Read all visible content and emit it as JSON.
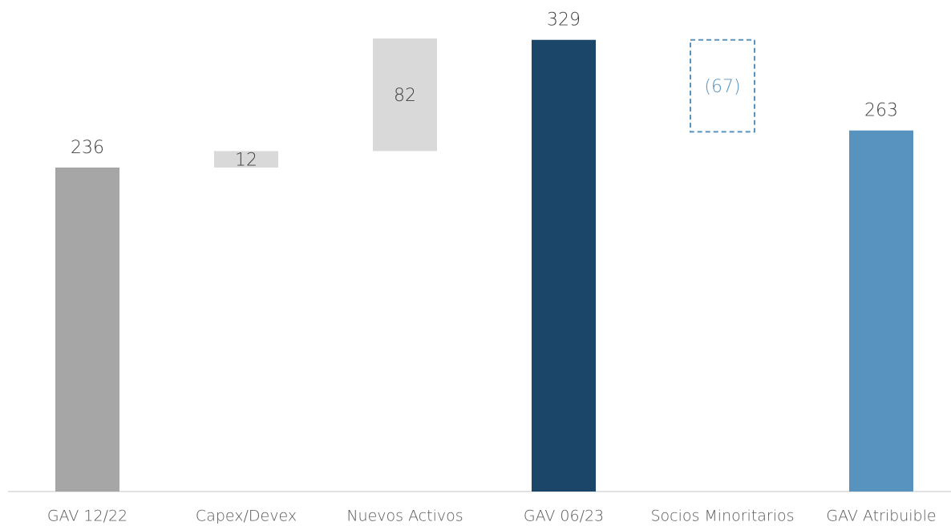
{
  "chart_data": {
    "type": "waterfall",
    "categories": [
      "GAV 12/22",
      "Capex/Devex",
      "Nuevos Activos",
      "GAV 06/23",
      "Socios Minoritarios",
      "GAV Atribuible"
    ],
    "values": [
      236,
      12,
      82,
      329,
      -67,
      263
    ],
    "value_labels": [
      "236",
      "12",
      "82",
      "329",
      "(67)",
      "263"
    ],
    "measure": [
      "absolute",
      "relative",
      "relative",
      "total",
      "relative",
      "total"
    ],
    "colors": [
      "#a6a6a6",
      "#d9d9d9",
      "#d9d9d9",
      "#1b4669",
      "#5893c0",
      "#5893c0"
    ],
    "dashed": [
      false,
      false,
      false,
      false,
      true,
      false
    ]
  }
}
